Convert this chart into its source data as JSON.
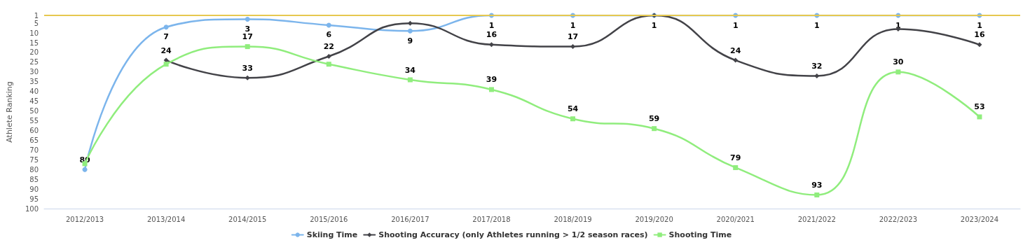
{
  "chart_data": {
    "type": "line",
    "ylabel": "Athlete Ranking",
    "categories": [
      "2012/2013",
      "2013/2014",
      "2014/2015",
      "2015/2016",
      "2016/2017",
      "2017/2018",
      "2018/2019",
      "2019/2020",
      "2020/2021",
      "2021/2022",
      "2022/2023",
      "2023/2024"
    ],
    "series": [
      {
        "name": "Skiing Time",
        "color": "#7cb5ec",
        "marker": "circle",
        "values": [
          80,
          7,
          3,
          6,
          9,
          1,
          1,
          1,
          1,
          1,
          1,
          1
        ],
        "value_labels": [
          "80",
          "7",
          "3",
          "6",
          "9",
          "1",
          "1",
          "1",
          "1",
          "1",
          "1",
          "1"
        ]
      },
      {
        "name": "Shooting Accuracy (only Athletes running > 1/2 season races)",
        "color": "#434348",
        "marker": "diamond",
        "values": [
          null,
          24,
          33,
          22,
          5,
          16,
          17,
          1,
          24,
          32,
          8,
          16
        ],
        "value_labels": [
          null,
          "24",
          "33",
          "22",
          null,
          "16",
          "17",
          null,
          "24",
          "32",
          null,
          "16"
        ]
      },
      {
        "name": "Shooting Time",
        "color": "#90ed7d",
        "marker": "square",
        "values": [
          77,
          26,
          17,
          26,
          34,
          39,
          54,
          59,
          79,
          93,
          30,
          53
        ],
        "value_labels": [
          null,
          null,
          "17",
          null,
          "34",
          "39",
          "54",
          "59",
          "79",
          "93",
          "30",
          "53"
        ]
      }
    ],
    "ylim": [
      100,
      1
    ],
    "yticks": [
      1,
      5,
      10,
      15,
      20,
      25,
      30,
      35,
      40,
      45,
      50,
      55,
      60,
      65,
      70,
      75,
      80,
      85,
      90,
      95,
      100
    ],
    "ref_lines": [
      {
        "axis": "y",
        "value": 1,
        "color": "#e6c84f"
      }
    ],
    "grid": false,
    "legend": "bottom"
  }
}
